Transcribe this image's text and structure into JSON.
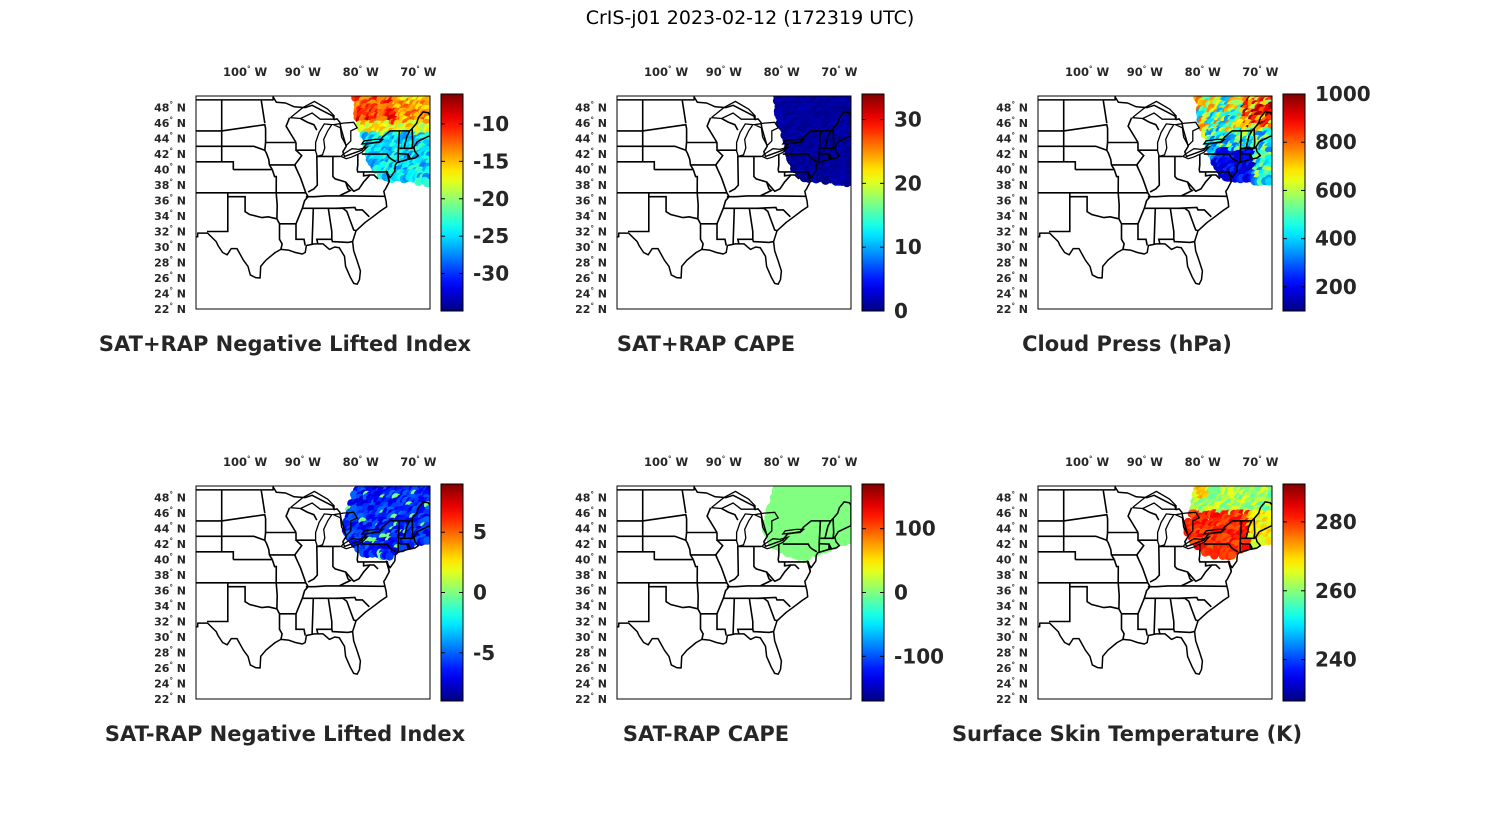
{
  "title": "CrIS-j01 2023-02-12 (172319 UTC)",
  "map": {
    "lon_ticks": [
      {
        "value": -100,
        "label": "100",
        "hem": "W"
      },
      {
        "value": -90,
        "label": "90",
        "hem": "W"
      },
      {
        "value": -80,
        "label": "80",
        "hem": "W"
      },
      {
        "value": -70,
        "label": "70",
        "hem": "W"
      }
    ],
    "lat_ticks": [
      {
        "value": 48,
        "label": "48",
        "hem": "N"
      },
      {
        "value": 46,
        "label": "46",
        "hem": "N"
      },
      {
        "value": 44,
        "label": "44",
        "hem": "N"
      },
      {
        "value": 42,
        "label": "42",
        "hem": "N"
      },
      {
        "value": 40,
        "label": "40",
        "hem": "N"
      },
      {
        "value": 38,
        "label": "38",
        "hem": "N"
      },
      {
        "value": 36,
        "label": "36",
        "hem": "N"
      },
      {
        "value": 34,
        "label": "34",
        "hem": "N"
      },
      {
        "value": 32,
        "label": "32",
        "hem": "N"
      },
      {
        "value": 30,
        "label": "30",
        "hem": "N"
      },
      {
        "value": 28,
        "label": "28",
        "hem": "N"
      },
      {
        "value": 26,
        "label": "26",
        "hem": "N"
      },
      {
        "value": 24,
        "label": "24",
        "hem": "N"
      },
      {
        "value": 22,
        "label": "22",
        "hem": "N"
      }
    ],
    "lon_range": [
      -108.5,
      -68
    ],
    "lat_range": [
      22,
      49.5
    ],
    "colormap": "jet"
  },
  "panels": [
    {
      "title": "SAT+RAP Negative Lifted Index",
      "colorbar": {
        "min": -35,
        "max": -6,
        "ticks": [
          "-10",
          "-15",
          "-20",
          "-25",
          "-30"
        ],
        "tick_values": [
          -10,
          -15,
          -20,
          -25,
          -30
        ]
      },
      "coverage": "full-swath",
      "fill_value_range": [
        -32,
        -8
      ],
      "pattern": "nli_plus"
    },
    {
      "title": "SAT+RAP CAPE",
      "colorbar": {
        "min": 0,
        "max": 34,
        "ticks": [
          "30",
          "20",
          "10",
          "0"
        ],
        "tick_values": [
          30,
          20,
          10,
          0
        ]
      },
      "coverage": "full-swath",
      "fill_value_range": [
        0,
        2
      ],
      "pattern": "cape_plus"
    },
    {
      "title": "Cloud Press (hPa)",
      "colorbar": {
        "min": 100,
        "max": 1000,
        "ticks": [
          "1000",
          "800",
          "600",
          "400",
          "200"
        ],
        "tick_values": [
          1000,
          800,
          600,
          400,
          200
        ]
      },
      "coverage": "full-swath",
      "fill_value_range": [
        150,
        900
      ],
      "pattern": "cloud"
    },
    {
      "title": "SAT-RAP Negative Lifted Index",
      "colorbar": {
        "min": -9,
        "max": 9,
        "ticks": [
          "5",
          "0",
          "-5"
        ],
        "tick_values": [
          5,
          0,
          -5
        ]
      },
      "coverage": "northern-swath",
      "fill_value_range": [
        -8,
        -3
      ],
      "pattern": "nli_minus"
    },
    {
      "title": "SAT-RAP CAPE",
      "colorbar": {
        "min": -170,
        "max": 170,
        "ticks": [
          "100",
          "0",
          "-100"
        ],
        "tick_values": [
          100,
          0,
          -100
        ]
      },
      "coverage": "northern-swath",
      "fill_value_range": [
        0,
        0
      ],
      "pattern": "cape_minus"
    },
    {
      "title": "Surface Skin Temperature (K)",
      "colorbar": {
        "min": 228,
        "max": 291,
        "ticks": [
          "280",
          "260",
          "240"
        ],
        "tick_values": [
          280,
          260,
          240
        ]
      },
      "coverage": "northern-swath",
      "fill_value_range": [
        250,
        285
      ],
      "pattern": "skin"
    }
  ]
}
